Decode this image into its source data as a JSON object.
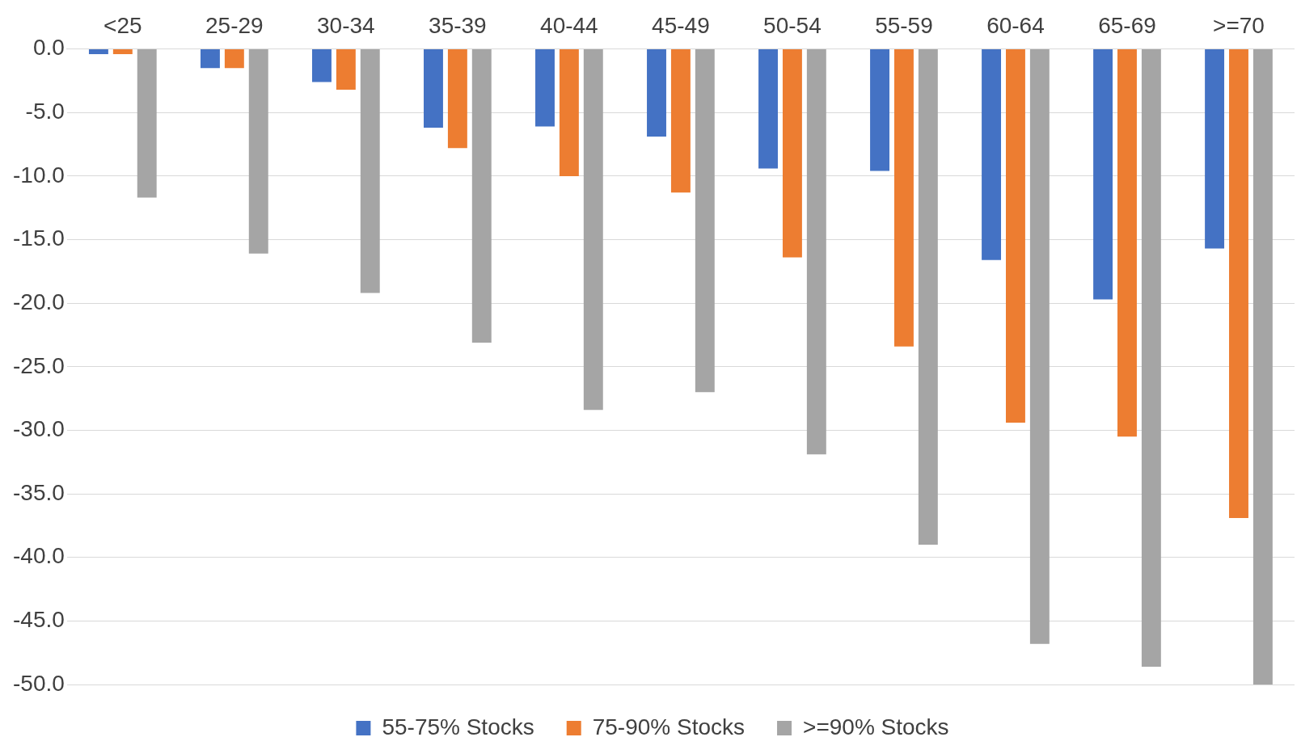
{
  "chart_data": {
    "type": "bar",
    "categories": [
      "<25",
      "25-29",
      "30-34",
      "35-39",
      "40-44",
      "45-49",
      "50-54",
      "55-59",
      "60-64",
      "65-69",
      ">=70"
    ],
    "series": [
      {
        "name": "55-75% Stocks",
        "color": "#4472c4",
        "values": [
          -0.4,
          -1.5,
          -2.6,
          -6.2,
          -6.1,
          -6.9,
          -9.4,
          -9.6,
          -16.6,
          -19.7,
          -15.7
        ]
      },
      {
        "name": "75-90% Stocks",
        "color": "#ed7d31",
        "values": [
          -0.4,
          -1.5,
          -3.2,
          -7.8,
          -10.0,
          -11.3,
          -16.4,
          -23.4,
          -29.4,
          -30.5,
          -36.9
        ]
      },
      {
        "name": ">=90% Stocks",
        "color": "#a5a5a5",
        "values": [
          -11.7,
          -16.1,
          -19.2,
          -23.1,
          -28.4,
          -27.0,
          -31.9,
          -39.0,
          -46.8,
          -48.6,
          -50.0
        ]
      }
    ],
    "ylim": [
      -50,
      0
    ],
    "yticks": [
      {
        "value": 0,
        "label": "0.0"
      },
      {
        "value": -5,
        "label": "-5.0"
      },
      {
        "value": -10,
        "label": "-10.0"
      },
      {
        "value": -15,
        "label": "-15.0"
      },
      {
        "value": -20,
        "label": "-20.0"
      },
      {
        "value": -25,
        "label": "-25.0"
      },
      {
        "value": -30,
        "label": "-30.0"
      },
      {
        "value": -35,
        "label": "-35.0"
      },
      {
        "value": -40,
        "label": "-40.0"
      },
      {
        "value": -45,
        "label": "-45.0"
      },
      {
        "value": -50,
        "label": "-50.0"
      }
    ],
    "grid": "y",
    "legend": "bottom"
  }
}
